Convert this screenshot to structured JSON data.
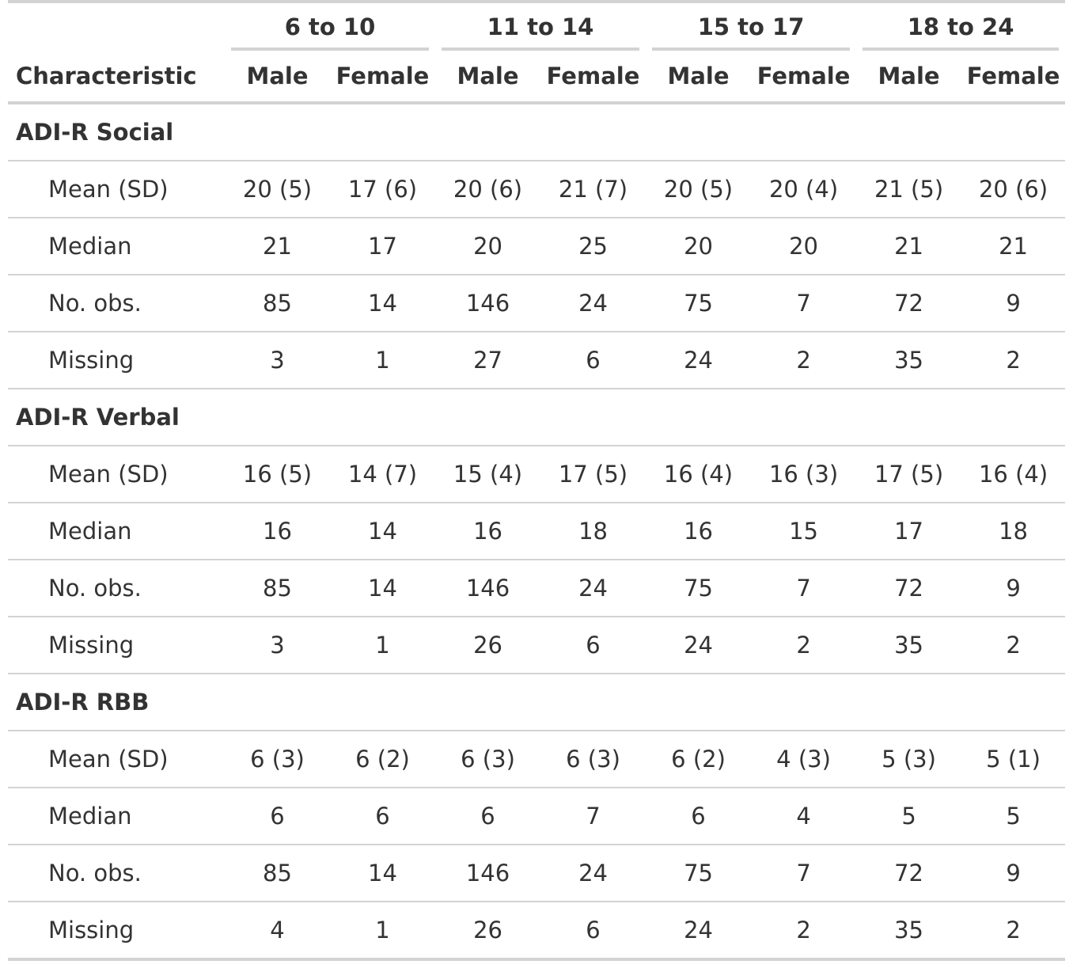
{
  "table": {
    "characteristic_header": "Characteristic",
    "spanners": [
      "6 to 10",
      "11 to 14",
      "15 to 17",
      "18 to 24"
    ],
    "column_headers": [
      "Male",
      "Female",
      "Male",
      "Female",
      "Male",
      "Female",
      "Male",
      "Female"
    ],
    "groups": [
      {
        "label": "ADI-R Social",
        "rows": [
          {
            "label": "Mean (SD)",
            "values": [
              "20 (5)",
              "17 (6)",
              "20 (6)",
              "21 (7)",
              "20 (5)",
              "20 (4)",
              "21 (5)",
              "20 (6)"
            ]
          },
          {
            "label": "Median",
            "values": [
              "21",
              "17",
              "20",
              "25",
              "20",
              "20",
              "21",
              "21"
            ]
          },
          {
            "label": "No. obs.",
            "values": [
              "85",
              "14",
              "146",
              "24",
              "75",
              "7",
              "72",
              "9"
            ]
          },
          {
            "label": "Missing",
            "values": [
              "3",
              "1",
              "27",
              "6",
              "24",
              "2",
              "35",
              "2"
            ]
          }
        ]
      },
      {
        "label": "ADI-R Verbal",
        "rows": [
          {
            "label": "Mean (SD)",
            "values": [
              "16 (5)",
              "14 (7)",
              "15 (4)",
              "17 (5)",
              "16 (4)",
              "16 (3)",
              "17 (5)",
              "16 (4)"
            ]
          },
          {
            "label": "Median",
            "values": [
              "16",
              "14",
              "16",
              "18",
              "16",
              "15",
              "17",
              "18"
            ]
          },
          {
            "label": "No. obs.",
            "values": [
              "85",
              "14",
              "146",
              "24",
              "75",
              "7",
              "72",
              "9"
            ]
          },
          {
            "label": "Missing",
            "values": [
              "3",
              "1",
              "26",
              "6",
              "24",
              "2",
              "35",
              "2"
            ]
          }
        ]
      },
      {
        "label": "ADI-R RBB",
        "rows": [
          {
            "label": "Mean (SD)",
            "values": [
              "6 (3)",
              "6 (2)",
              "6 (3)",
              "6 (3)",
              "6 (2)",
              "4 (3)",
              "5 (3)",
              "5 (1)"
            ]
          },
          {
            "label": "Median",
            "values": [
              "6",
              "6",
              "6",
              "7",
              "6",
              "4",
              "5",
              "5"
            ]
          },
          {
            "label": "No. obs.",
            "values": [
              "85",
              "14",
              "146",
              "24",
              "75",
              "7",
              "72",
              "9"
            ]
          },
          {
            "label": "Missing",
            "values": [
              "4",
              "1",
              "26",
              "6",
              "24",
              "2",
              "35",
              "2"
            ]
          }
        ]
      }
    ]
  }
}
